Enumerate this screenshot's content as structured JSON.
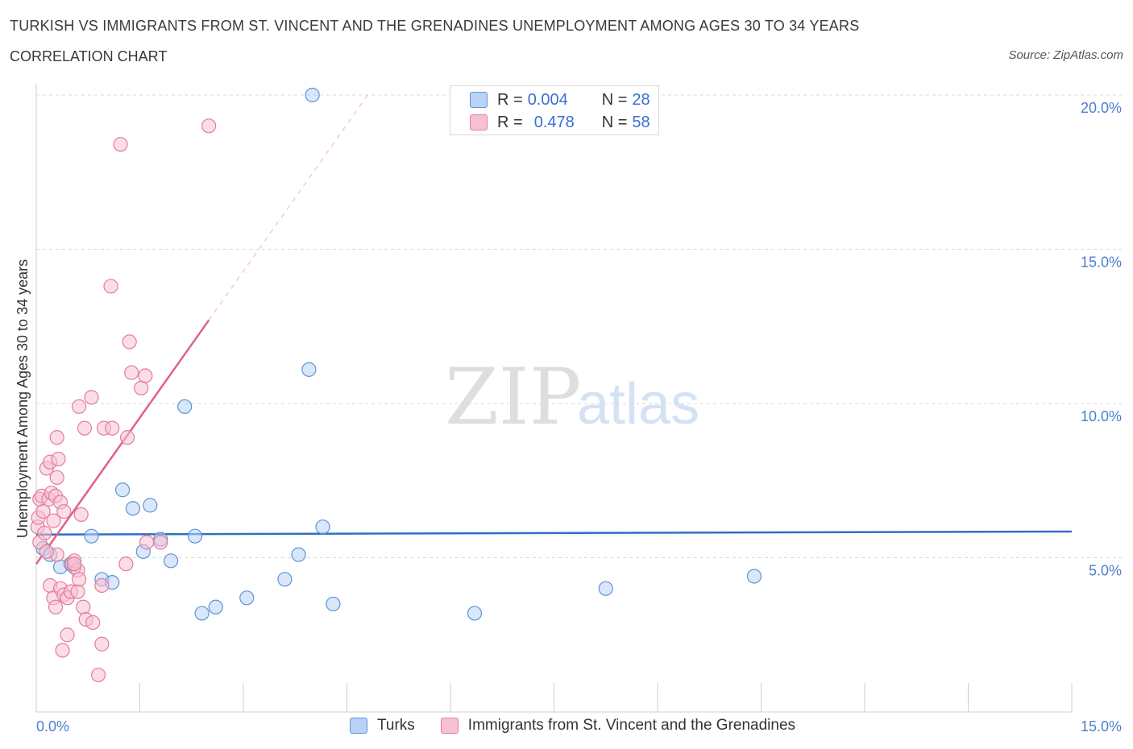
{
  "header": {
    "title": "TURKISH VS IMMIGRANTS FROM ST. VINCENT AND THE GRENADINES UNEMPLOYMENT AMONG AGES 30 TO 34 YEARS",
    "subtitle": "CORRELATION CHART",
    "source": "Source: ZipAtlas.com"
  },
  "watermark": {
    "zip": "ZIP",
    "atlas": "atlas"
  },
  "legend": {
    "rows": [
      {
        "r_label": "R = ",
        "r_value": "0.004",
        "n_label": "N = ",
        "n_value": "28"
      },
      {
        "r_label": "R = ",
        "r_value": "0.478",
        "n_label": "N = ",
        "n_value": "58"
      }
    ]
  },
  "colors": {
    "turks_fill": "#b8d3f5",
    "turks_stroke": "#5f93d8",
    "turks_line": "#2f6fc4",
    "svg_fill": "#f7c1d2",
    "svg_stroke": "#e57b9e",
    "svg_line": "#e0608a",
    "grid": "#d9d9d9",
    "axis_text": "#4a7fd1"
  },
  "chart_data": {
    "type": "scatter",
    "xlabel": "",
    "ylabel": "Unemployment Among Ages 30 to 34 years",
    "xlim": [
      0,
      15
    ],
    "ylim": [
      0,
      20
    ],
    "x_ticks": [
      "0.0%",
      "15.0%"
    ],
    "y_ticks": [
      "5.0%",
      "10.0%",
      "15.0%",
      "20.0%"
    ],
    "y_tick_values": [
      5,
      10,
      15,
      20
    ],
    "grid": true,
    "legend_position": "top-center",
    "series": [
      {
        "name": "Turks",
        "points": [
          [
            0.1,
            5.3
          ],
          [
            0.2,
            5.1
          ],
          [
            0.35,
            4.7
          ],
          [
            0.5,
            4.8
          ],
          [
            0.55,
            4.7
          ],
          [
            0.8,
            5.7
          ],
          [
            0.95,
            4.3
          ],
          [
            1.1,
            4.2
          ],
          [
            1.25,
            7.2
          ],
          [
            1.4,
            6.6
          ],
          [
            1.55,
            5.2
          ],
          [
            1.65,
            6.7
          ],
          [
            1.8,
            5.6
          ],
          [
            1.95,
            4.9
          ],
          [
            2.15,
            9.9
          ],
          [
            2.3,
            5.7
          ],
          [
            2.4,
            3.2
          ],
          [
            2.6,
            3.4
          ],
          [
            3.05,
            3.7
          ],
          [
            3.6,
            4.3
          ],
          [
            3.8,
            5.1
          ],
          [
            3.95,
            11.1
          ],
          [
            4.0,
            20.0
          ],
          [
            4.15,
            6.0
          ],
          [
            4.3,
            3.5
          ],
          [
            6.35,
            3.2
          ],
          [
            8.25,
            4.0
          ],
          [
            10.4,
            4.4
          ]
        ],
        "trend": {
          "x": [
            0,
            15
          ],
          "y": [
            5.75,
            5.85
          ]
        }
      },
      {
        "name": "Immigrants from St. Vincent and the Grenadines",
        "points": [
          [
            0.02,
            6.0
          ],
          [
            0.03,
            6.3
          ],
          [
            0.05,
            5.5
          ],
          [
            0.05,
            6.9
          ],
          [
            0.08,
            7.0
          ],
          [
            0.1,
            6.5
          ],
          [
            0.12,
            5.8
          ],
          [
            0.15,
            7.9
          ],
          [
            0.18,
            6.9
          ],
          [
            0.2,
            8.1
          ],
          [
            0.22,
            7.1
          ],
          [
            0.25,
            6.2
          ],
          [
            0.28,
            7.0
          ],
          [
            0.3,
            7.6
          ],
          [
            0.3,
            8.9
          ],
          [
            0.32,
            8.2
          ],
          [
            0.35,
            6.8
          ],
          [
            0.4,
            6.5
          ],
          [
            0.2,
            4.1
          ],
          [
            0.25,
            3.7
          ],
          [
            0.28,
            3.4
          ],
          [
            0.3,
            5.1
          ],
          [
            0.35,
            4.0
          ],
          [
            0.38,
            2.0
          ],
          [
            0.4,
            3.8
          ],
          [
            0.45,
            3.7
          ],
          [
            0.45,
            2.5
          ],
          [
            0.5,
            3.9
          ],
          [
            0.52,
            4.8
          ],
          [
            0.55,
            4.9
          ],
          [
            0.6,
            3.9
          ],
          [
            0.6,
            4.6
          ],
          [
            0.62,
            4.3
          ],
          [
            0.62,
            9.9
          ],
          [
            0.65,
            6.4
          ],
          [
            0.68,
            3.4
          ],
          [
            0.7,
            9.2
          ],
          [
            0.72,
            3.0
          ],
          [
            0.8,
            10.2
          ],
          [
            0.82,
            2.9
          ],
          [
            0.9,
            1.2
          ],
          [
            0.95,
            2.2
          ],
          [
            0.95,
            4.1
          ],
          [
            0.98,
            9.2
          ],
          [
            1.1,
            9.2
          ],
          [
            1.08,
            13.8
          ],
          [
            1.22,
            18.4
          ],
          [
            1.3,
            4.8
          ],
          [
            1.32,
            8.9
          ],
          [
            1.35,
            12.0
          ],
          [
            1.38,
            11.0
          ],
          [
            1.52,
            10.5
          ],
          [
            1.58,
            10.9
          ],
          [
            1.6,
            5.5
          ],
          [
            1.8,
            5.5
          ],
          [
            2.5,
            19.0
          ],
          [
            0.15,
            5.2
          ],
          [
            0.55,
            4.8
          ]
        ],
        "trend": {
          "x": [
            0.0,
            2.5
          ],
          "y": [
            4.8,
            12.7
          ]
        },
        "trend_extension": {
          "x": [
            2.5,
            4.8
          ],
          "y": [
            12.7,
            20.0
          ]
        }
      }
    ]
  },
  "bottom_legend": {
    "items": [
      "Turks",
      "Immigrants from St. Vincent and the Grenadines"
    ]
  }
}
